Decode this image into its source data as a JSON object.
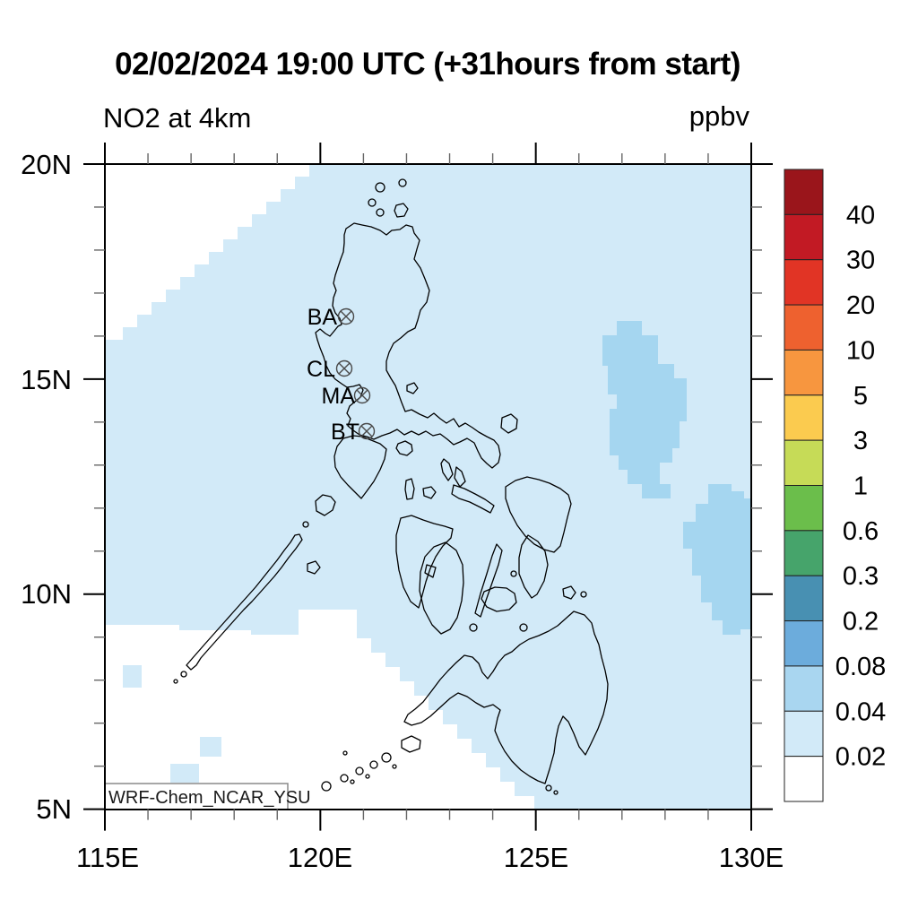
{
  "header": {
    "title": "02/02/2024 19:00 UTC (+31hours from start)",
    "field_label": "NO2 at 4km",
    "units_label": "ppbv"
  },
  "watermark": "WRF-Chem_NCAR_YSU",
  "stations": [
    {
      "label": "BA"
    },
    {
      "label": "CL"
    },
    {
      "label": "MA"
    },
    {
      "label": "BT"
    }
  ],
  "axes": {
    "y_ticks": [
      "20N",
      "15N",
      "10N",
      "5N"
    ],
    "x_ticks": [
      "115E",
      "120E",
      "125E",
      "130E"
    ]
  },
  "colorbar": {
    "values_top_to_bottom": [
      "40",
      "30",
      "20",
      "10",
      "5",
      "3",
      "1",
      "0.6",
      "0.3",
      "0.2",
      "0.08",
      "0.04",
      "0.02"
    ],
    "colors_top_to_bottom": [
      "#9a151b",
      "#c21a24",
      "#e13425",
      "#ee612f",
      "#f7963f",
      "#fbcb4f",
      "#c6db57",
      "#6bbe4b",
      "#46a46b",
      "#4890b2",
      "#6cacdc",
      "#a9d6f0",
      "#d2eaf8",
      "#ffffff"
    ]
  },
  "map_colors": {
    "background_bin_0p02_0p04": "#d2eaf8",
    "patch_bin_0p04_0p08": "#a5d6f0",
    "below_0p02": "#ffffff",
    "coastline": "#000000"
  },
  "chart_data": {
    "type": "heatmap",
    "title": "02/02/2024 19:00 UTC (+31hours from start)",
    "field": "NO2 at 4km",
    "units": "ppbv",
    "model_label": "WRF-Chem_NCAR_YSU",
    "lon_range": [
      115,
      130
    ],
    "lat_range": [
      5,
      20
    ],
    "x_tick_labels": [
      "115E",
      "120E",
      "125E",
      "130E"
    ],
    "y_tick_labels": [
      "20N",
      "15N",
      "10N",
      "5N"
    ],
    "contour_levels_ppbv": [
      0.02,
      0.04,
      0.08,
      0.2,
      0.3,
      0.6,
      1,
      3,
      5,
      10,
      20,
      30,
      40
    ],
    "colorbar_position": "right",
    "stations": [
      {
        "code": "BA",
        "lon": 120.6,
        "lat": 16.45
      },
      {
        "code": "CL",
        "lon": 120.55,
        "lat": 15.25
      },
      {
        "code": "MA",
        "lon": 120.97,
        "lat": 14.62
      },
      {
        "code": "BT",
        "lon": 121.07,
        "lat": 13.79
      }
    ],
    "field_summary": [
      {
        "bin": "< 0.02 ppbv",
        "region": "northwest corner of domain (staircase edge, ~115-119.5E above 16N) and southwest sector around Palawan / Sulu Sea (~115-125E below ~9.5N)"
      },
      {
        "bin": "0.02 - 0.04 ppbv",
        "region": "most of the domain"
      },
      {
        "bin": "0.04 - 0.08 ppbv",
        "region": "elongated NE-SW patch east of the archipelago (~126.5-128.5E, 12.5-16.3N), a patch at the SE domain edge (~128.4-130E, 9-12.6N), and a few small cells near Palawan (~115.5E 9.3N, ~117.2E 7.5N, ~116.6E 6.3N)"
      }
    ]
  }
}
